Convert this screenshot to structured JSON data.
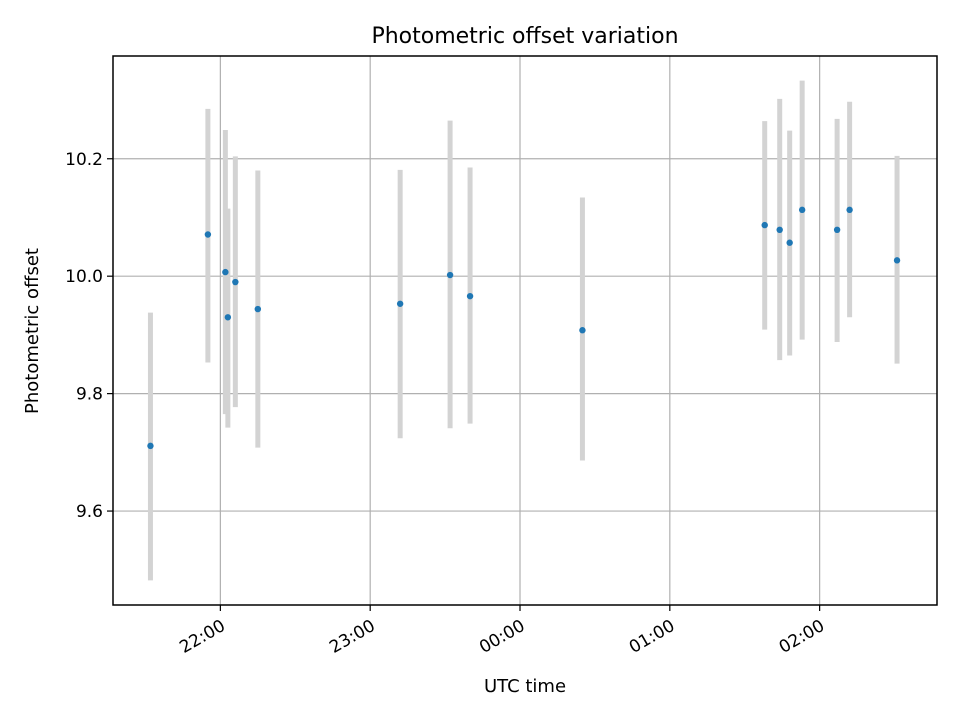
{
  "chart_data": {
    "type": "scatter",
    "title": "Photometric offset variation",
    "xlabel": "UTC time",
    "ylabel": "Photometric offset",
    "x_axis_kind": "time",
    "xlim": [
      "21:17",
      "02:47"
    ],
    "ylim": [
      9.44,
      10.375
    ],
    "x_ticks": [
      "22:00",
      "23:00",
      "00:00",
      "01:00",
      "02:00"
    ],
    "y_ticks": [
      "9.6",
      "9.8",
      "10.0",
      "10.2"
    ],
    "grid": true,
    "series_color": "#1f77b4",
    "error_color": "#d3d3d3",
    "points": [
      {
        "t": "21:32",
        "y": 9.711,
        "y_low": 9.482,
        "y_high": 9.938
      },
      {
        "t": "21:55",
        "y": 10.071,
        "y_low": 9.853,
        "y_high": 10.285
      },
      {
        "t": "22:02",
        "y": 10.007,
        "y_low": 9.765,
        "y_high": 10.249
      },
      {
        "t": "22:03",
        "y": 9.93,
        "y_low": 9.742,
        "y_high": 10.115
      },
      {
        "t": "22:06",
        "y": 9.99,
        "y_low": 9.777,
        "y_high": 10.204
      },
      {
        "t": "22:15",
        "y": 9.944,
        "y_low": 9.708,
        "y_high": 10.18
      },
      {
        "t": "23:12",
        "y": 9.953,
        "y_low": 9.724,
        "y_high": 10.181
      },
      {
        "t": "23:32",
        "y": 10.002,
        "y_low": 9.741,
        "y_high": 10.265
      },
      {
        "t": "23:40",
        "y": 9.966,
        "y_low": 9.749,
        "y_high": 10.185
      },
      {
        "t": "00:25",
        "y": 9.908,
        "y_low": 9.686,
        "y_high": 10.134
      },
      {
        "t": "01:38",
        "y": 10.087,
        "y_low": 9.909,
        "y_high": 10.264
      },
      {
        "t": "01:44",
        "y": 10.079,
        "y_low": 9.857,
        "y_high": 10.302
      },
      {
        "t": "01:48",
        "y": 10.057,
        "y_low": 9.865,
        "y_high": 10.248
      },
      {
        "t": "01:53",
        "y": 10.113,
        "y_low": 9.892,
        "y_high": 10.333
      },
      {
        "t": "02:07",
        "y": 10.079,
        "y_low": 9.888,
        "y_high": 10.268
      },
      {
        "t": "02:12",
        "y": 10.113,
        "y_low": 9.93,
        "y_high": 10.297
      },
      {
        "t": "02:31",
        "y": 10.027,
        "y_low": 9.851,
        "y_high": 10.205
      }
    ]
  }
}
